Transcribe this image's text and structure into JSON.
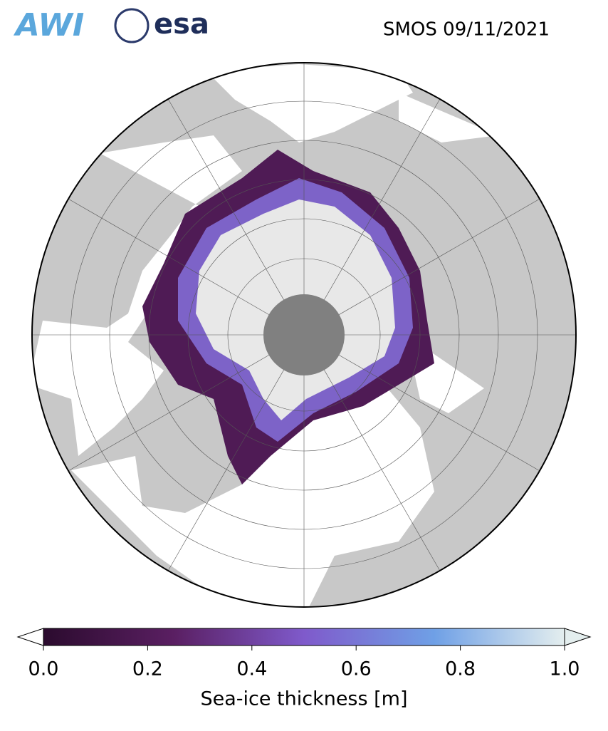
{
  "header": {
    "logos": [
      "AWI",
      "esa"
    ],
    "title": "SMOS 09/11/2021"
  },
  "colorbar": {
    "label": "Sea-ice thickness [m]",
    "lim": [
      0,
      1
    ],
    "ticks": [
      {
        "value": 0,
        "label": "0.0"
      },
      {
        "value": 0.2,
        "label": "0.2"
      },
      {
        "value": 0.4,
        "label": "0.4"
      },
      {
        "value": 0.6,
        "label": "0.6"
      },
      {
        "value": 0.8,
        "label": "0.8"
      },
      {
        "value": 1,
        "label": "1.0"
      }
    ],
    "colors": [
      "#2b0b2e",
      "#5a1f62",
      "#7f5acb",
      "#6fa0e6",
      "#e4eeee"
    ]
  }
}
